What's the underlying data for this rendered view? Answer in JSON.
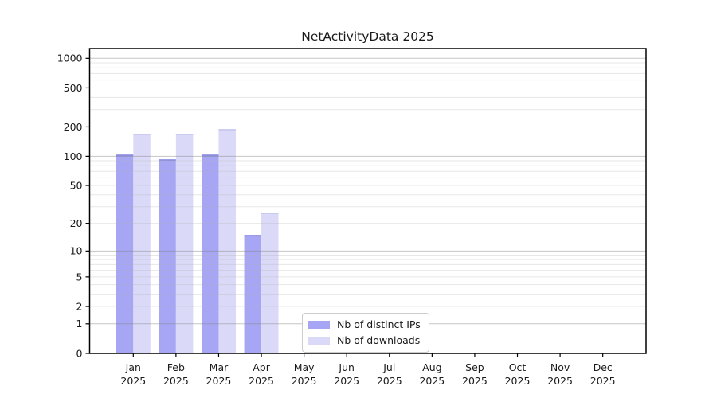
{
  "chart_data": {
    "type": "bar",
    "title": "NetActivityData 2025",
    "categories": [
      [
        "Jan",
        "2025"
      ],
      [
        "Feb",
        "2025"
      ],
      [
        "Mar",
        "2025"
      ],
      [
        "Apr",
        "2025"
      ],
      [
        "May",
        "2025"
      ],
      [
        "Jun",
        "2025"
      ],
      [
        "Jul",
        "2025"
      ],
      [
        "Aug",
        "2025"
      ],
      [
        "Sep",
        "2025"
      ],
      [
        "Oct",
        "2025"
      ],
      [
        "Nov",
        "2025"
      ],
      [
        "Dec",
        "2025"
      ]
    ],
    "series": [
      {
        "name": "Nb of distinct IPs",
        "color": "#a6a6f4",
        "edge_color": "#8d8de2",
        "values": [
          104,
          93,
          104,
          15,
          0,
          0,
          0,
          0,
          0,
          0,
          0,
          0
        ]
      },
      {
        "name": "Nb of downloads",
        "color": "#dadaf8",
        "edge_color": "#c9c9f0",
        "values": [
          170,
          170,
          190,
          26,
          0,
          0,
          0,
          0,
          0,
          0,
          0,
          0
        ]
      }
    ],
    "y_ticks": [
      0,
      1,
      2,
      5,
      10,
      20,
      50,
      100,
      200,
      500,
      1000
    ],
    "y_scale": "log1p",
    "ylim": [
      0,
      1260
    ],
    "xlabel": "",
    "ylabel": "",
    "grid": {
      "show": true,
      "major_color": "#808080",
      "major_opacity": 0.45,
      "minor_color": "#b0b0b0",
      "minor_opacity": 0.3,
      "grid_above_bars": true
    },
    "legend": {
      "position": "lower-center",
      "entries": [
        "Nb of distinct IPs",
        "Nb of downloads"
      ]
    }
  }
}
